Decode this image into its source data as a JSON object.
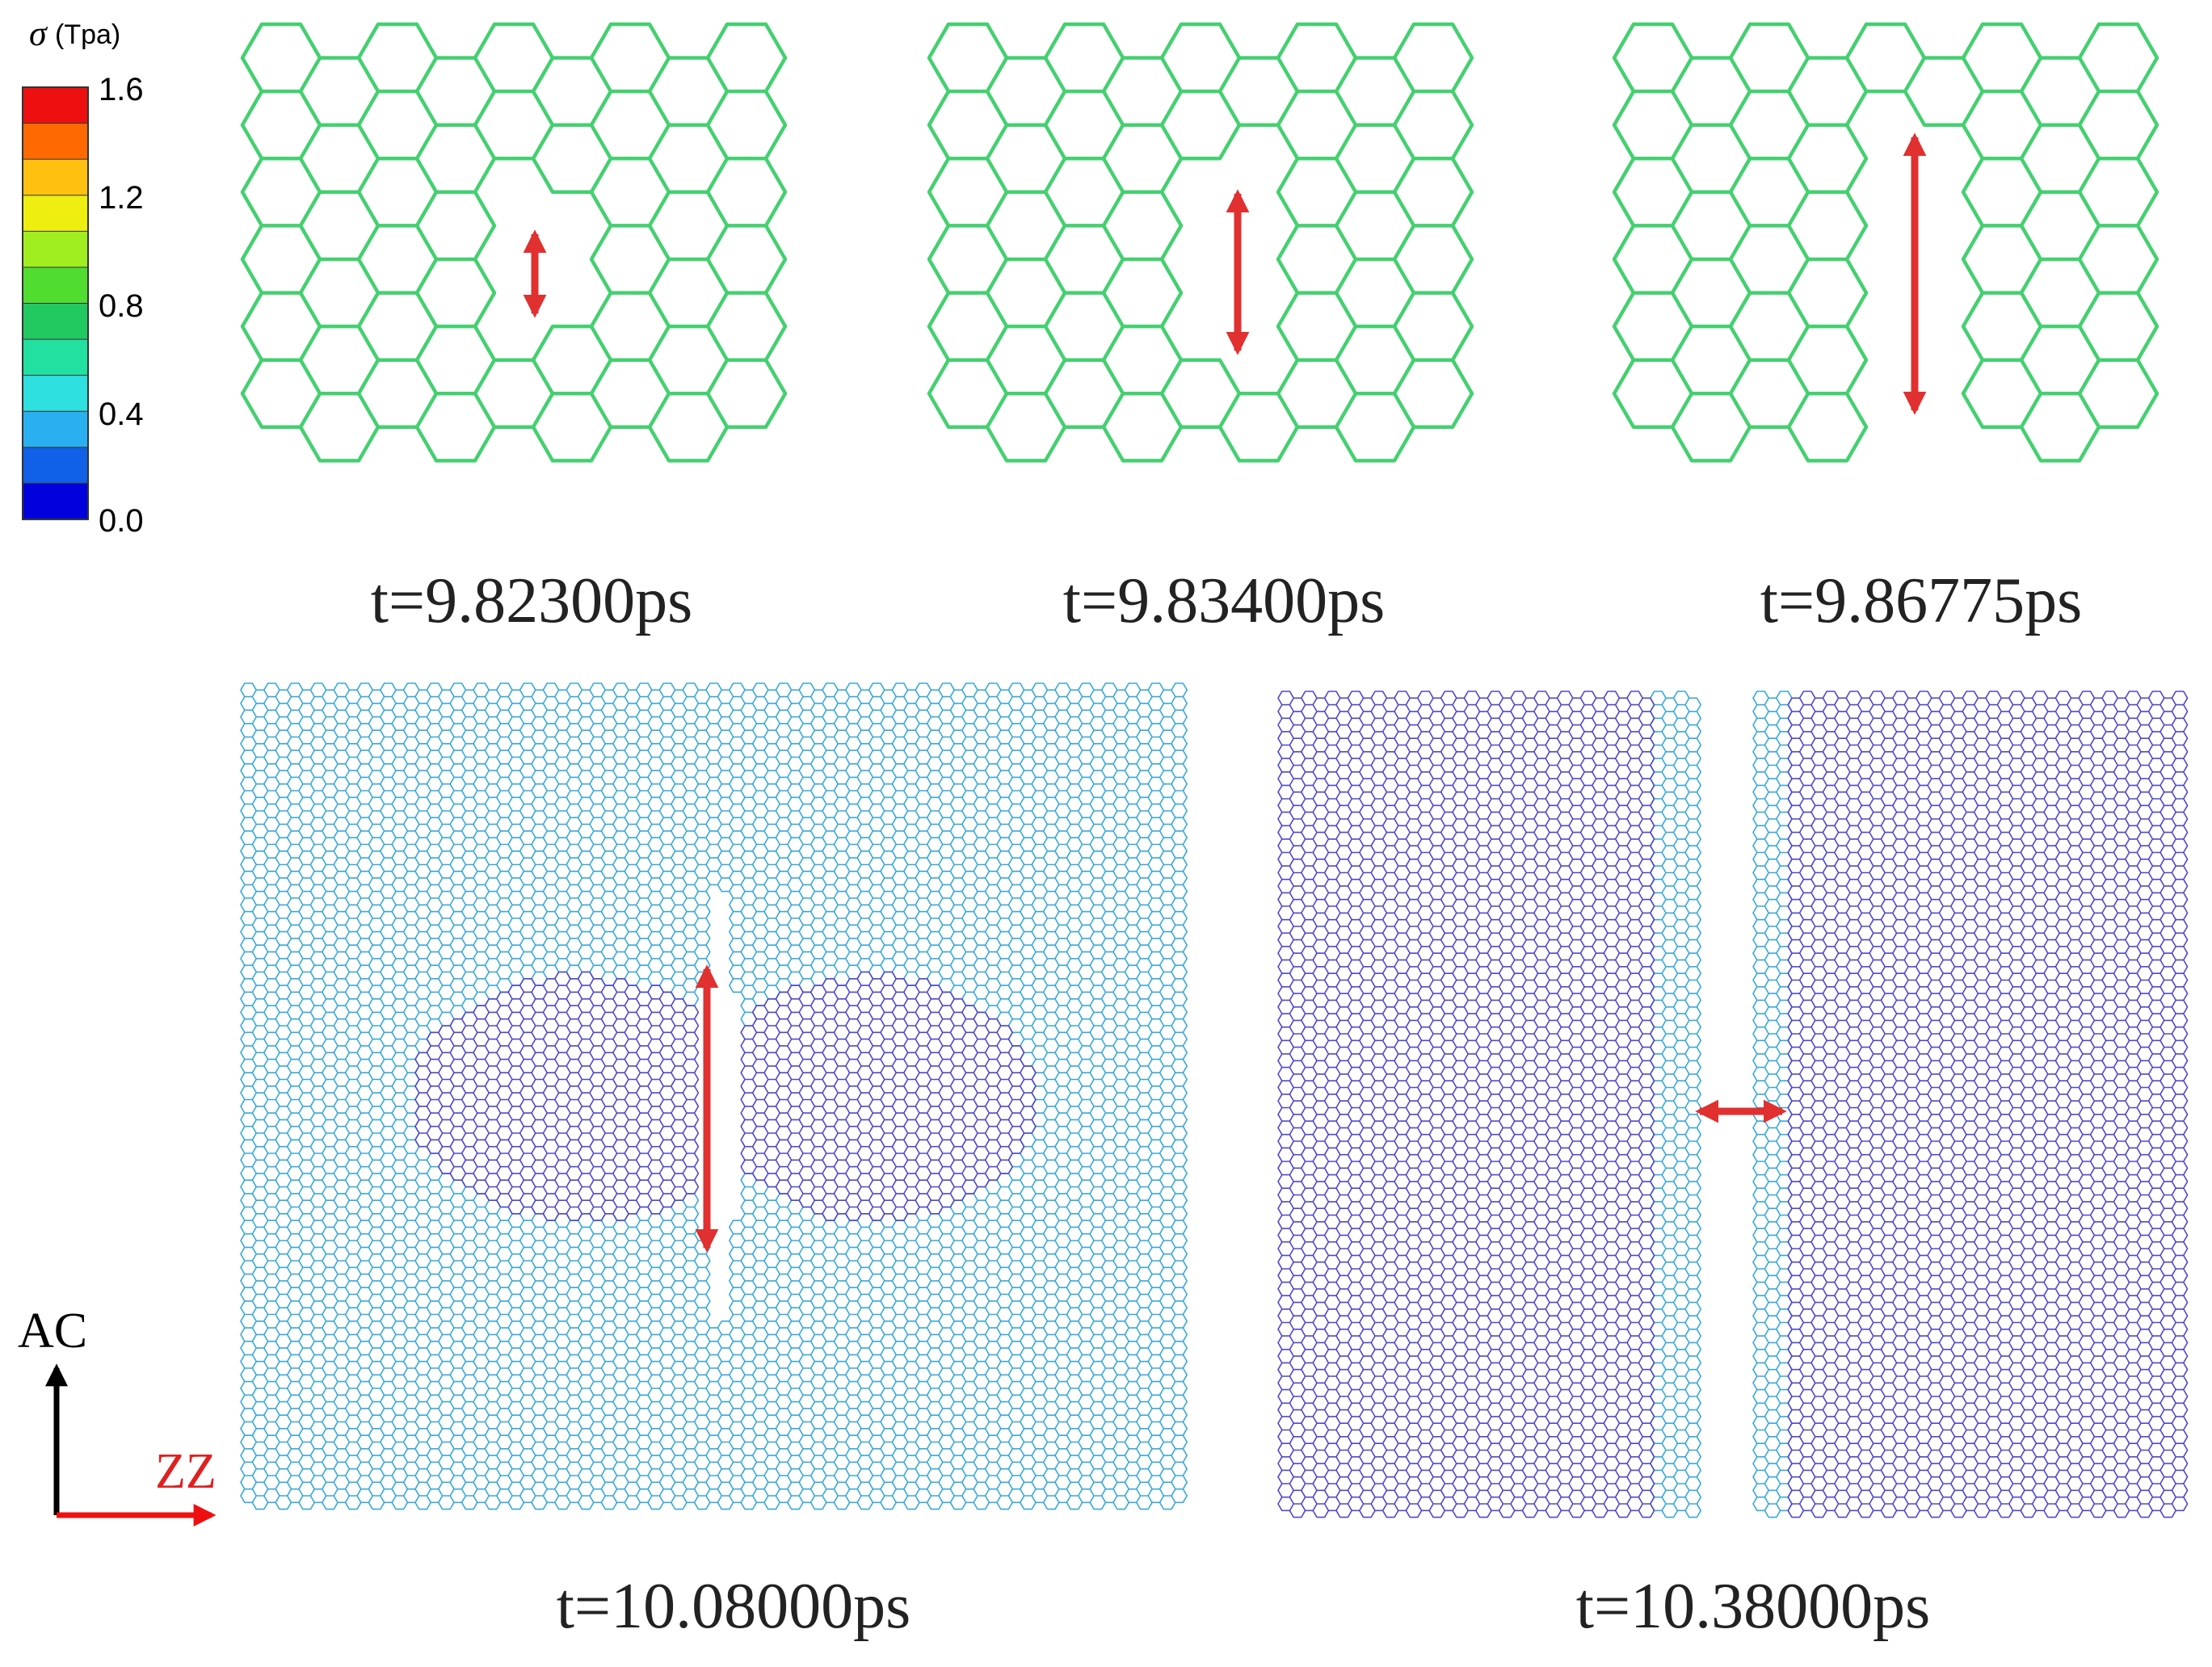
{
  "colorbar": {
    "symbol": "σ",
    "unit": "(Tpa)",
    "ticks": [
      "1.6",
      "1.2",
      "0.8",
      "0.4",
      "0.0"
    ],
    "colors": [
      "#0000dd",
      "#1060e8",
      "#2ab0f0",
      "#2ee0e0",
      "#22e0a0",
      "#22c860",
      "#50dd30",
      "#a0ee20",
      "#eeee10",
      "#ffc010",
      "#ff6a00",
      "#ee1010"
    ]
  },
  "panels": [
    {
      "time_label": "t=9.82300ps"
    },
    {
      "time_label": "t=9.83400ps"
    },
    {
      "time_label": "t=9.86775ps"
    },
    {
      "time_label": "t=10.08000ps"
    },
    {
      "time_label": "t=10.38000ps"
    }
  ],
  "axes": {
    "vertical_label": "AC",
    "horizontal_label": "ZZ"
  },
  "colors": {
    "arrow": "#e03030",
    "zz_label": "#e02020",
    "lattice_default": "#44d070",
    "lattice_fine": "#3aa8d8",
    "lattice_fine_core": "#5048c8"
  }
}
